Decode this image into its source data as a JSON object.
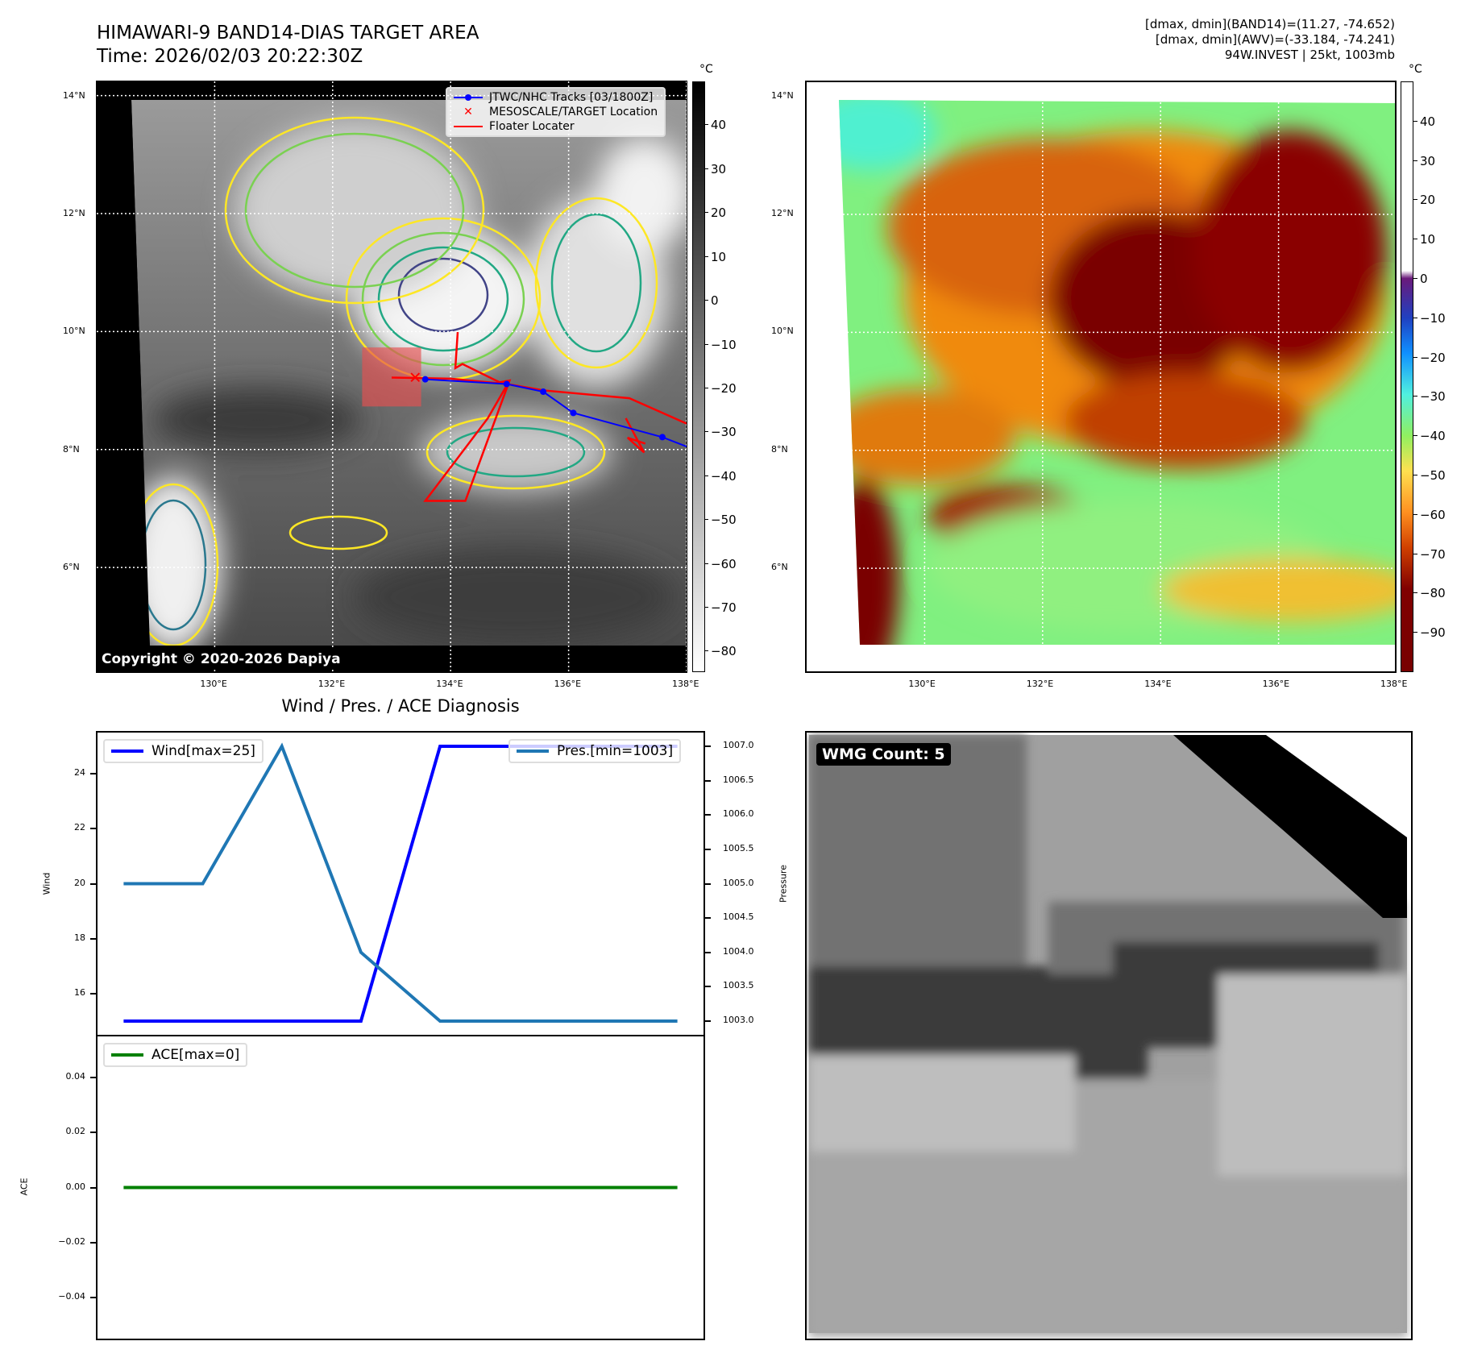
{
  "header": {
    "title_line1": "HIMAWARI-9 BAND14-DIAS TARGET AREA",
    "title_line2": "Time: 2026/02/03 20:22:30Z",
    "stats_line1": "[dmax, dmin](BAND14)=(11.27, -74.652)",
    "stats_line2": "[dmax, dmin](AWV)=(-33.184, -74.241)",
    "stats_line3": "94W.INVEST | 25kt, 1003mb"
  },
  "map": {
    "lon_ticks": [
      "130°E",
      "132°E",
      "134°E",
      "136°E",
      "138°E"
    ],
    "lon_values": [
      130,
      132,
      134,
      136,
      138
    ],
    "lat_ticks": [
      "14°N",
      "12°N",
      "10°N",
      "8°N",
      "6°N"
    ],
    "lat_values": [
      14,
      12,
      10,
      8,
      6
    ],
    "copyright": "Copyright © 2020-2026 Dapiya",
    "legend": {
      "tracks": "JTWC/NHC Tracks [03/1800Z]",
      "target": "MESOSCALE/TARGET Location",
      "floater": "Floater Locater"
    },
    "jtwc_track": [
      [
        133.57,
        9.19
      ],
      [
        134.95,
        9.11
      ],
      [
        135.57,
        8.98
      ],
      [
        136.08,
        8.62
      ],
      [
        137.59,
        8.21
      ],
      [
        138.0,
        8.05
      ]
    ],
    "target_location": [
      133.4,
      9.22
    ],
    "floater_path": [
      [
        133.0,
        9.22
      ],
      [
        134.0,
        9.2
      ],
      [
        134.95,
        9.11
      ],
      [
        135.6,
        9.0
      ],
      [
        137.03,
        8.87
      ],
      [
        138.0,
        8.44
      ]
    ],
    "floater_box": [
      [
        134.12,
        9.99
      ],
      [
        134.08,
        9.38
      ],
      [
        134.2,
        9.45
      ],
      [
        134.83,
        9.14
      ],
      [
        135.0,
        9.17
      ],
      [
        134.25,
        7.13
      ],
      [
        133.57,
        7.13
      ],
      [
        134.63,
        8.53
      ],
      [
        135.0,
        9.17
      ]
    ],
    "floater_box2": [
      [
        136.97,
        8.53
      ],
      [
        137.28,
        7.95
      ],
      [
        137.0,
        8.2
      ],
      [
        137.3,
        8.1
      ]
    ],
    "mesoscale_box": {
      "lon": [
        132.5,
        133.5
      ],
      "lat": [
        8.73,
        9.73
      ]
    },
    "colors": {
      "track": "#0000ff",
      "floater": "#ff0000"
    }
  },
  "colorbar_left": {
    "unit": "°C",
    "ticks": [
      "40",
      "30",
      "20",
      "10",
      "0",
      "−10",
      "−20",
      "−30",
      "−40",
      "−50",
      "−60",
      "−70",
      "−80"
    ],
    "values": [
      40,
      30,
      20,
      10,
      0,
      -10,
      -20,
      -30,
      -40,
      -50,
      -60,
      -70,
      -80
    ],
    "range": [
      -84.7,
      50
    ]
  },
  "colorbar_right": {
    "unit": "°C",
    "ticks": [
      "40",
      "30",
      "20",
      "10",
      "0",
      "−10",
      "−20",
      "−30",
      "−40",
      "−50",
      "−60",
      "−70",
      "−80",
      "−90"
    ],
    "values": [
      40,
      30,
      20,
      10,
      0,
      -10,
      -20,
      -30,
      -40,
      -50,
      -60,
      -70,
      -80,
      -90
    ],
    "range": [
      -100,
      50.2
    ]
  },
  "chart_data": [
    {
      "type": "line",
      "title": "Wind / Pres. / ACE Diagnosis",
      "x": [
        0,
        1,
        2,
        3,
        4,
        5,
        6,
        7
      ],
      "xlim": [
        -0.33,
        7.33
      ],
      "series": [
        {
          "name": "Wind[max=25]",
          "axis": "left",
          "color": "#0000ff",
          "values": [
            15,
            15,
            15,
            15,
            25,
            25,
            25,
            25
          ]
        },
        {
          "name": "Pres.[min=1003]",
          "axis": "right",
          "color": "#1f77b4",
          "values": [
            1005,
            1005,
            1007,
            1004,
            1003,
            1003,
            1003,
            1003
          ]
        }
      ],
      "ylabel": "Wind",
      "ylim": [
        14.5,
        25.5
      ],
      "yticks": [
        "16",
        "18",
        "20",
        "22",
        "24"
      ],
      "ytick_values": [
        16,
        18,
        20,
        22,
        24
      ],
      "y2label": "Pressure",
      "y2lim": [
        1002.8,
        1007.2
      ],
      "y2ticks": [
        "1003.0",
        "1003.5",
        "1004.0",
        "1004.5",
        "1005.0",
        "1005.5",
        "1006.0",
        "1006.5",
        "1007.0"
      ],
      "y2tick_values": [
        1003,
        1003.5,
        1004,
        1004.5,
        1005,
        1005.5,
        1006,
        1006.5,
        1007
      ],
      "legend": [
        "top-left",
        "top-right"
      ]
    },
    {
      "type": "line",
      "x": [
        0,
        1,
        2,
        3,
        4,
        5,
        6,
        7
      ],
      "xlim": [
        -0.33,
        7.33
      ],
      "series": [
        {
          "name": "ACE[max=0]",
          "color": "#008000",
          "values": [
            0,
            0,
            0,
            0,
            0,
            0,
            0,
            0
          ]
        }
      ],
      "ylabel": "ACE",
      "ylim": [
        -0.055,
        0.055
      ],
      "yticks": [
        "0.04",
        "0.02",
        "0.00",
        "−0.02",
        "−0.04"
      ],
      "ytick_values": [
        0.04,
        0.02,
        0,
        -0.02,
        -0.04
      ],
      "legend": [
        "top-left"
      ]
    }
  ],
  "wmg": {
    "label": "WMG Count: 5"
  }
}
